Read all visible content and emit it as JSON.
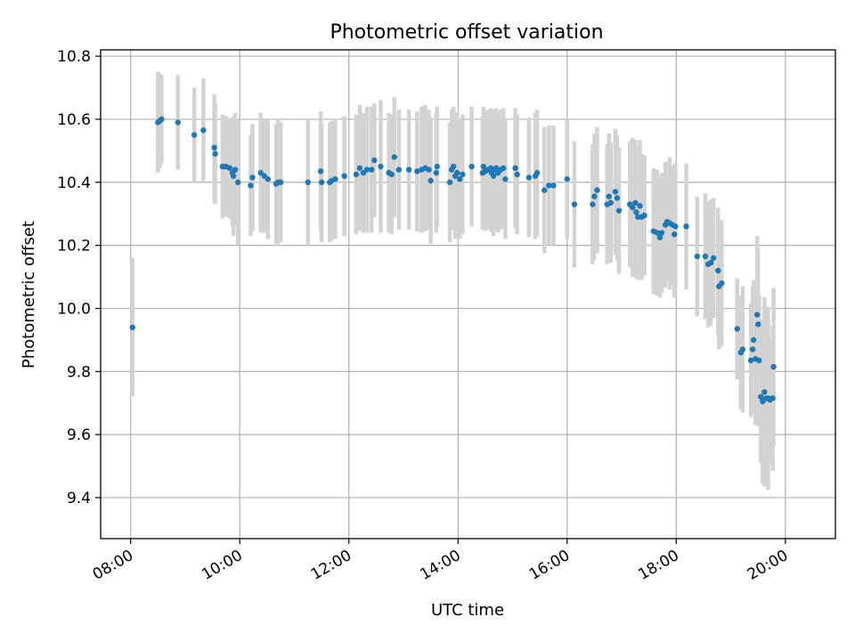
{
  "chart_data": {
    "type": "scatter",
    "title": "Photometric offset variation",
    "xlabel": "UTC time",
    "ylabel": "Photometric offset",
    "xlim": [
      "07:27",
      "20:55"
    ],
    "ylim": [
      9.27,
      10.82
    ],
    "xticks": [
      "08:00",
      "10:00",
      "12:00",
      "14:00",
      "16:00",
      "18:00",
      "20:00"
    ],
    "yticks": [
      9.4,
      9.6,
      9.8,
      10.0,
      10.2,
      10.4,
      10.6,
      10.8
    ],
    "ytick_labels": [
      "9.4",
      "9.6",
      "9.8",
      "10.0",
      "10.2",
      "10.4",
      "10.6",
      "10.8"
    ],
    "grid": true,
    "colors": {
      "point": "#1f77b4",
      "errorbar": "#d3d3d3",
      "grid": "#b0b0b0"
    },
    "points": [
      {
        "x": "08:02",
        "y": 9.94,
        "err": 0.22
      },
      {
        "x": "08:30",
        "y": 10.59,
        "err": 0.16
      },
      {
        "x": "08:32",
        "y": 10.595,
        "err": 0.15
      },
      {
        "x": "08:34",
        "y": 10.6,
        "err": 0.14
      },
      {
        "x": "08:52",
        "y": 10.59,
        "err": 0.15
      },
      {
        "x": "09:10",
        "y": 10.55,
        "err": 0.15
      },
      {
        "x": "09:20",
        "y": 10.565,
        "err": 0.165
      },
      {
        "x": "09:32",
        "y": 10.51,
        "err": 0.17
      },
      {
        "x": "09:33",
        "y": 10.49,
        "err": 0.16
      },
      {
        "x": "09:41",
        "y": 10.45,
        "err": 0.165
      },
      {
        "x": "09:43",
        "y": 10.45,
        "err": 0.16
      },
      {
        "x": "09:45",
        "y": 10.45,
        "err": 0.16
      },
      {
        "x": "09:49",
        "y": 10.445,
        "err": 0.16
      },
      {
        "x": "09:52",
        "y": 10.43,
        "err": 0.17
      },
      {
        "x": "09:53",
        "y": 10.42,
        "err": 0.19
      },
      {
        "x": "09:55",
        "y": 10.44,
        "err": 0.18
      },
      {
        "x": "09:58",
        "y": 10.4,
        "err": 0.2
      },
      {
        "x": "10:12",
        "y": 10.39,
        "err": 0.16
      },
      {
        "x": "10:14",
        "y": 10.415,
        "err": 0.17
      },
      {
        "x": "10:23",
        "y": 10.43,
        "err": 0.19
      },
      {
        "x": "10:27",
        "y": 10.42,
        "err": 0.18
      },
      {
        "x": "10:31",
        "y": 10.41,
        "err": 0.19
      },
      {
        "x": "10:40",
        "y": 10.395,
        "err": 0.19
      },
      {
        "x": "10:42",
        "y": 10.4,
        "err": 0.2
      },
      {
        "x": "10:45",
        "y": 10.4,
        "err": 0.19
      },
      {
        "x": "11:15",
        "y": 10.4,
        "err": 0.2
      },
      {
        "x": "11:29",
        "y": 10.435,
        "err": 0.19
      },
      {
        "x": "11:30",
        "y": 10.4,
        "err": 0.19
      },
      {
        "x": "11:39",
        "y": 10.4,
        "err": 0.19
      },
      {
        "x": "11:41",
        "y": 10.405,
        "err": 0.19
      },
      {
        "x": "11:45",
        "y": 10.41,
        "err": 0.19
      },
      {
        "x": "11:55",
        "y": 10.42,
        "err": 0.19
      },
      {
        "x": "12:08",
        "y": 10.425,
        "err": 0.19
      },
      {
        "x": "12:12",
        "y": 10.445,
        "err": 0.2
      },
      {
        "x": "12:16",
        "y": 10.43,
        "err": 0.19
      },
      {
        "x": "12:20",
        "y": 10.44,
        "err": 0.2
      },
      {
        "x": "12:25",
        "y": 10.44,
        "err": 0.2
      },
      {
        "x": "12:28",
        "y": 10.47,
        "err": 0.18
      },
      {
        "x": "12:35",
        "y": 10.45,
        "err": 0.21
      },
      {
        "x": "12:44",
        "y": 10.43,
        "err": 0.19
      },
      {
        "x": "12:47",
        "y": 10.425,
        "err": 0.19
      },
      {
        "x": "12:50",
        "y": 10.48,
        "err": 0.19
      },
      {
        "x": "12:55",
        "y": 10.44,
        "err": 0.19
      },
      {
        "x": "13:06",
        "y": 10.44,
        "err": 0.19
      },
      {
        "x": "13:15",
        "y": 10.435,
        "err": 0.19
      },
      {
        "x": "13:20",
        "y": 10.44,
        "err": 0.2
      },
      {
        "x": "13:24",
        "y": 10.445,
        "err": 0.2
      },
      {
        "x": "13:28",
        "y": 10.44,
        "err": 0.19
      },
      {
        "x": "13:30",
        "y": 10.405,
        "err": 0.2
      },
      {
        "x": "13:36",
        "y": 10.43,
        "err": 0.19
      },
      {
        "x": "13:37",
        "y": 10.45,
        "err": 0.19
      },
      {
        "x": "13:51",
        "y": 10.4,
        "err": 0.19
      },
      {
        "x": "13:53",
        "y": 10.44,
        "err": 0.19
      },
      {
        "x": "13:55",
        "y": 10.45,
        "err": 0.19
      },
      {
        "x": "13:57",
        "y": 10.42,
        "err": 0.2
      },
      {
        "x": "13:59",
        "y": 10.43,
        "err": 0.19
      },
      {
        "x": "14:02",
        "y": 10.41,
        "err": 0.19
      },
      {
        "x": "14:05",
        "y": 10.425,
        "err": 0.19
      },
      {
        "x": "14:15",
        "y": 10.45,
        "err": 0.19
      },
      {
        "x": "14:27",
        "y": 10.43,
        "err": 0.18
      },
      {
        "x": "14:28",
        "y": 10.45,
        "err": 0.19
      },
      {
        "x": "14:30",
        "y": 10.435,
        "err": 0.19
      },
      {
        "x": "14:33",
        "y": 10.44,
        "err": 0.19
      },
      {
        "x": "14:36",
        "y": 10.445,
        "err": 0.19
      },
      {
        "x": "14:37",
        "y": 10.43,
        "err": 0.19
      },
      {
        "x": "14:39",
        "y": 10.42,
        "err": 0.19
      },
      {
        "x": "14:40",
        "y": 10.44,
        "err": 0.19
      },
      {
        "x": "14:42",
        "y": 10.445,
        "err": 0.19
      },
      {
        "x": "14:44",
        "y": 10.43,
        "err": 0.19
      },
      {
        "x": "14:47",
        "y": 10.44,
        "err": 0.19
      },
      {
        "x": "14:50",
        "y": 10.445,
        "err": 0.19
      },
      {
        "x": "14:52",
        "y": 10.41,
        "err": 0.19
      },
      {
        "x": "15:03",
        "y": 10.445,
        "err": 0.19
      },
      {
        "x": "15:05",
        "y": 10.425,
        "err": 0.19
      },
      {
        "x": "15:18",
        "y": 10.415,
        "err": 0.19
      },
      {
        "x": "15:25",
        "y": 10.42,
        "err": 0.2
      },
      {
        "x": "15:27",
        "y": 10.43,
        "err": 0.2
      },
      {
        "x": "15:35",
        "y": 10.375,
        "err": 0.2
      },
      {
        "x": "15:40",
        "y": 10.39,
        "err": 0.19
      },
      {
        "x": "15:45",
        "y": 10.39,
        "err": 0.19
      },
      {
        "x": "16:00",
        "y": 10.41,
        "err": 0.19
      },
      {
        "x": "16:08",
        "y": 10.33,
        "err": 0.2
      },
      {
        "x": "16:28",
        "y": 10.33,
        "err": 0.19
      },
      {
        "x": "16:30",
        "y": 10.355,
        "err": 0.2
      },
      {
        "x": "16:33",
        "y": 10.375,
        "err": 0.2
      },
      {
        "x": "16:44",
        "y": 10.33,
        "err": 0.19
      },
      {
        "x": "16:46",
        "y": 10.355,
        "err": 0.2
      },
      {
        "x": "16:48",
        "y": 10.335,
        "err": 0.19
      },
      {
        "x": "16:53",
        "y": 10.37,
        "err": 0.2
      },
      {
        "x": "16:55",
        "y": 10.35,
        "err": 0.2
      },
      {
        "x": "16:57",
        "y": 10.31,
        "err": 0.2
      },
      {
        "x": "17:09",
        "y": 10.33,
        "err": 0.2
      },
      {
        "x": "17:12",
        "y": 10.32,
        "err": 0.22
      },
      {
        "x": "17:15",
        "y": 10.335,
        "err": 0.2
      },
      {
        "x": "17:16",
        "y": 10.305,
        "err": 0.21
      },
      {
        "x": "17:18",
        "y": 10.29,
        "err": 0.2
      },
      {
        "x": "17:20",
        "y": 10.325,
        "err": 0.21
      },
      {
        "x": "17:22",
        "y": 10.29,
        "err": 0.2
      },
      {
        "x": "17:25",
        "y": 10.295,
        "err": 0.19
      },
      {
        "x": "17:35",
        "y": 10.245,
        "err": 0.2
      },
      {
        "x": "17:39",
        "y": 10.24,
        "err": 0.2
      },
      {
        "x": "17:42",
        "y": 10.225,
        "err": 0.19
      },
      {
        "x": "17:44",
        "y": 10.24,
        "err": 0.19
      },
      {
        "x": "17:48",
        "y": 10.265,
        "err": 0.2
      },
      {
        "x": "17:50",
        "y": 10.275,
        "err": 0.19
      },
      {
        "x": "17:53",
        "y": 10.27,
        "err": 0.21
      },
      {
        "x": "17:56",
        "y": 10.265,
        "err": 0.19
      },
      {
        "x": "17:58",
        "y": 10.235,
        "err": 0.2
      },
      {
        "x": "17:59",
        "y": 10.26,
        "err": 0.2
      },
      {
        "x": "18:11",
        "y": 10.26,
        "err": 0.2
      },
      {
        "x": "18:23",
        "y": 10.165,
        "err": 0.19
      },
      {
        "x": "18:32",
        "y": 10.165,
        "err": 0.2
      },
      {
        "x": "18:35",
        "y": 10.14,
        "err": 0.2
      },
      {
        "x": "18:38",
        "y": 10.145,
        "err": 0.2
      },
      {
        "x": "18:41",
        "y": 10.16,
        "err": 0.19
      },
      {
        "x": "18:46",
        "y": 10.12,
        "err": 0.2
      },
      {
        "x": "18:47",
        "y": 10.07,
        "err": 0.2
      },
      {
        "x": "18:50",
        "y": 10.08,
        "err": 0.2
      },
      {
        "x": "19:07",
        "y": 9.935,
        "err": 0.16
      },
      {
        "x": "19:11",
        "y": 9.86,
        "err": 0.18
      },
      {
        "x": "19:13",
        "y": 9.87,
        "err": 0.2
      },
      {
        "x": "19:22",
        "y": 9.835,
        "err": 0.18
      },
      {
        "x": "19:24",
        "y": 9.87,
        "err": 0.2
      },
      {
        "x": "19:25",
        "y": 9.9,
        "err": 0.19
      },
      {
        "x": "19:27",
        "y": 9.84,
        "err": 0.21
      },
      {
        "x": "19:29",
        "y": 9.98,
        "err": 0.25
      },
      {
        "x": "19:30",
        "y": 9.95,
        "err": 0.24
      },
      {
        "x": "19:31",
        "y": 9.835,
        "err": 0.21
      },
      {
        "x": "19:33",
        "y": 9.72,
        "err": 0.21
      },
      {
        "x": "19:35",
        "y": 9.705,
        "err": 0.26
      },
      {
        "x": "19:37",
        "y": 9.735,
        "err": 0.3
      },
      {
        "x": "19:39",
        "y": 9.715,
        "err": 0.25
      },
      {
        "x": "19:41",
        "y": 9.715,
        "err": 0.29
      },
      {
        "x": "19:43",
        "y": 9.71,
        "err": 0.2
      },
      {
        "x": "19:46",
        "y": 9.715,
        "err": 0.23
      },
      {
        "x": "19:47",
        "y": 9.815,
        "err": 0.25
      }
    ]
  }
}
